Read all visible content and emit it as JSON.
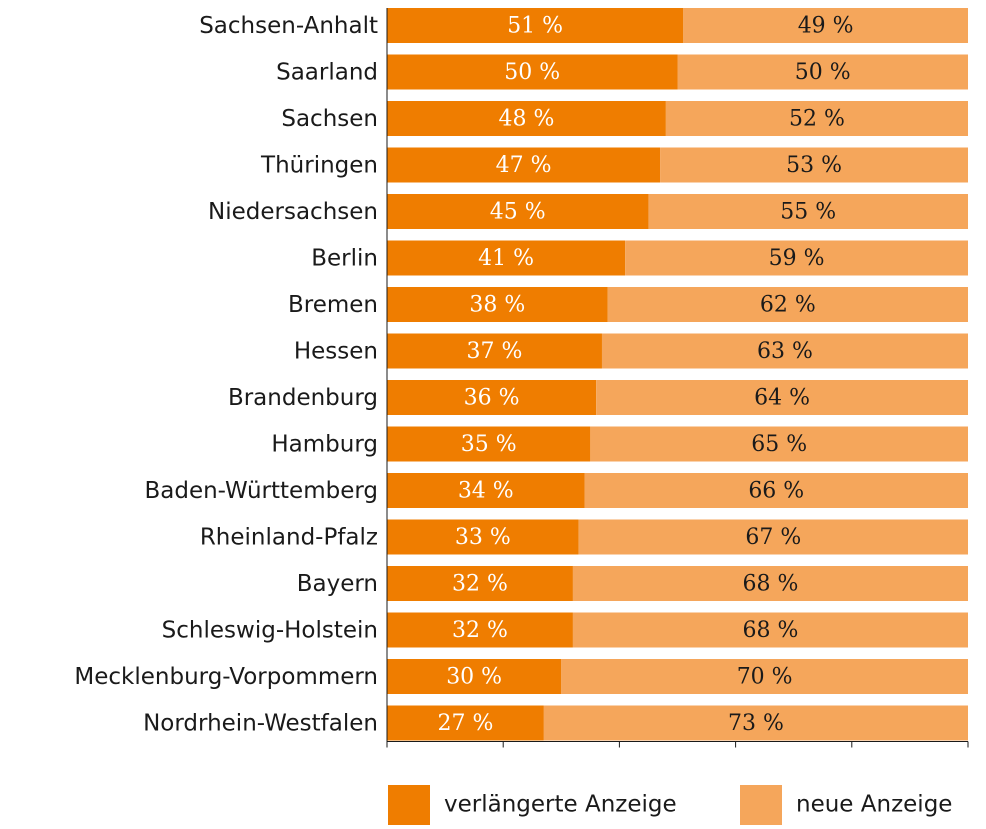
{
  "chart_data": {
    "type": "stacked_bar_horizontal",
    "categories": [
      "Sachsen-Anhalt",
      "Saarland",
      "Sachsen",
      "Thüringen",
      "Niedersachsen",
      "Berlin",
      "Bremen",
      "Hessen",
      "Brandenburg",
      "Hamburg",
      "Baden-Württemberg",
      "Rheinland-Pfalz",
      "Bayern",
      "Schleswig-Holstein",
      "Mecklenburg-Vorpommern",
      "Nordrhein-Westfalen"
    ],
    "series": [
      {
        "name": "verlängerte Anzeige",
        "color": "#ef7d00",
        "values": [
          51,
          50,
          48,
          47,
          45,
          41,
          38,
          37,
          36,
          35,
          34,
          33,
          32,
          32,
          30,
          27
        ],
        "value_labels": [
          "51 %",
          "50 %",
          "48 %",
          "47 %",
          "45 %",
          "41 %",
          "38 %",
          "37 %",
          "36 %",
          "35 %",
          "34 %",
          "33 %",
          "32 %",
          "32 %",
          "30 %",
          "27 %"
        ]
      },
      {
        "name": "neue Anzeige",
        "color": "#f5a65b",
        "values": [
          49,
          50,
          52,
          53,
          55,
          59,
          62,
          63,
          64,
          65,
          66,
          67,
          68,
          68,
          70,
          73
        ],
        "value_labels": [
          "49 %",
          "50 %",
          "52 %",
          "53 %",
          "55 %",
          "59 %",
          "62 %",
          "63 %",
          "64 %",
          "65 %",
          "66 %",
          "67 %",
          "68 %",
          "68 %",
          "70 %",
          "73 %"
        ]
      }
    ],
    "xlim": [
      0,
      100
    ],
    "xticks": [
      0,
      20,
      40,
      60,
      80,
      100
    ]
  }
}
